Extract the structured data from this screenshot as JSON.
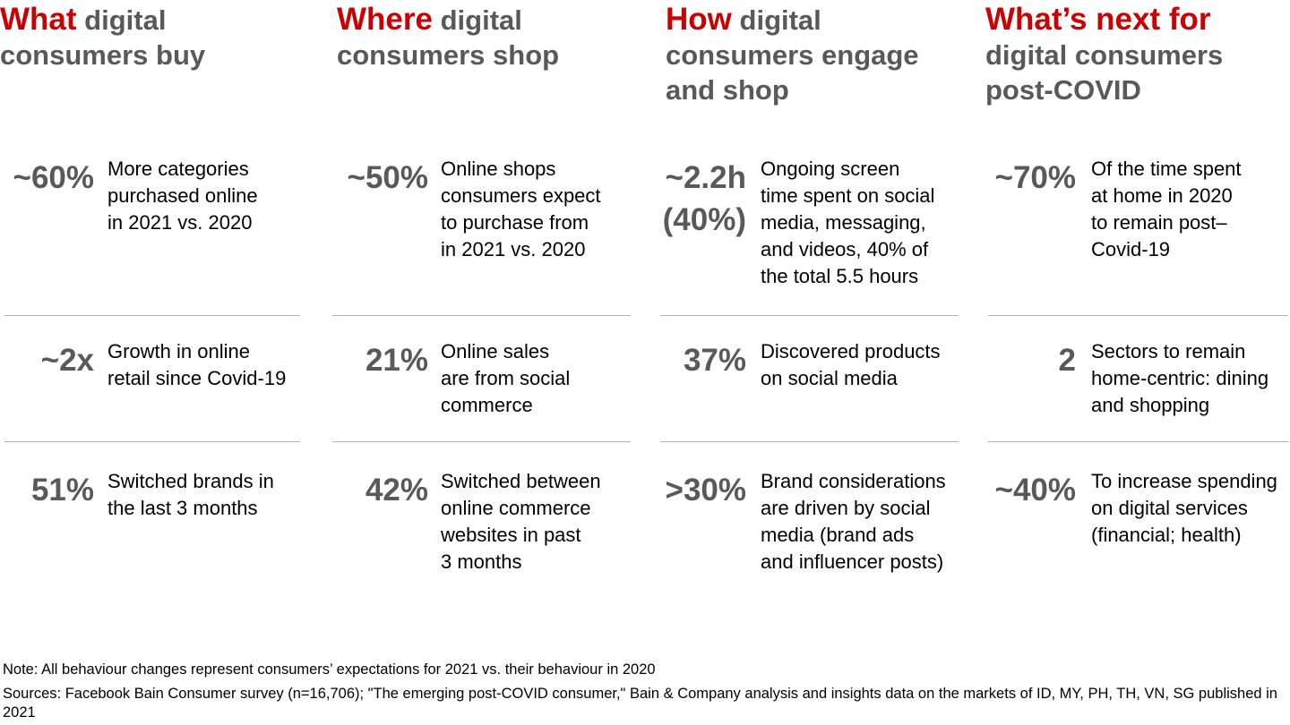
{
  "columns": [
    {
      "heading": {
        "keyword": "What",
        "rest": "digital consumers buy"
      },
      "stats": [
        {
          "figure": [
            "~60%"
          ],
          "text": [
            "More categories",
            "purchased online",
            "in 2021 vs. 2020"
          ]
        },
        {
          "figure": [
            "~2x"
          ],
          "text": [
            "Growth in online",
            "retail since Covid-19"
          ]
        },
        {
          "figure": [
            "51%"
          ],
          "text": [
            "Switched brands in",
            "the last 3 months"
          ]
        }
      ]
    },
    {
      "heading": {
        "keyword": "Where",
        "rest": "digital consumers shop"
      },
      "stats": [
        {
          "figure": [
            "~50%"
          ],
          "text": [
            "Online shops",
            "consumers expect",
            "to purchase from",
            "in 2021 vs. 2020"
          ]
        },
        {
          "figure": [
            "21%"
          ],
          "text": [
            "Online sales",
            "are from social",
            "commerce"
          ]
        },
        {
          "figure": [
            "42%"
          ],
          "text": [
            "Switched between",
            "online commerce",
            "websites in past",
            "3 months"
          ]
        }
      ]
    },
    {
      "heading": {
        "keyword": "How",
        "rest": "digital consumers engage and shop"
      },
      "stats": [
        {
          "figure": [
            "~2.2h",
            "(40%)"
          ],
          "text": [
            "Ongoing screen",
            "time spent on social",
            "media, messaging,",
            "and videos, 40% of",
            "the total 5.5 hours"
          ]
        },
        {
          "figure": [
            "37%"
          ],
          "text": [
            "Discovered products",
            "on social media"
          ]
        },
        {
          "figure": [
            ">30%"
          ],
          "text": [
            "Brand considerations",
            "are driven by social",
            "media (brand ads",
            "and influencer posts)"
          ]
        }
      ]
    },
    {
      "heading": {
        "keyword": "What’s next for",
        "rest": "digital consumers post-COVID"
      },
      "stats": [
        {
          "figure": [
            "~70%"
          ],
          "text": [
            "Of the time spent",
            "at home in 2020",
            "to remain post–",
            "Covid-19"
          ]
        },
        {
          "figure": [
            "2"
          ],
          "text": [
            "Sectors to remain",
            "home-centric: dining",
            "and shopping"
          ]
        },
        {
          "figure": [
            "~40%"
          ],
          "text": [
            "To increase spending",
            "on digital services",
            "(financial; health)"
          ]
        }
      ]
    }
  ],
  "footer": {
    "note": "Note: All behaviour changes represent consumers’ expectations for 2021 vs. their behaviour in 2020",
    "sources": "Sources: Facebook Bain Consumer survey (n=16,706); \"The emerging post-COVID consumer,\" Bain & Company analysis and insights data on the markets of ID, MY, PH, TH, VN, SG published in 2021"
  }
}
